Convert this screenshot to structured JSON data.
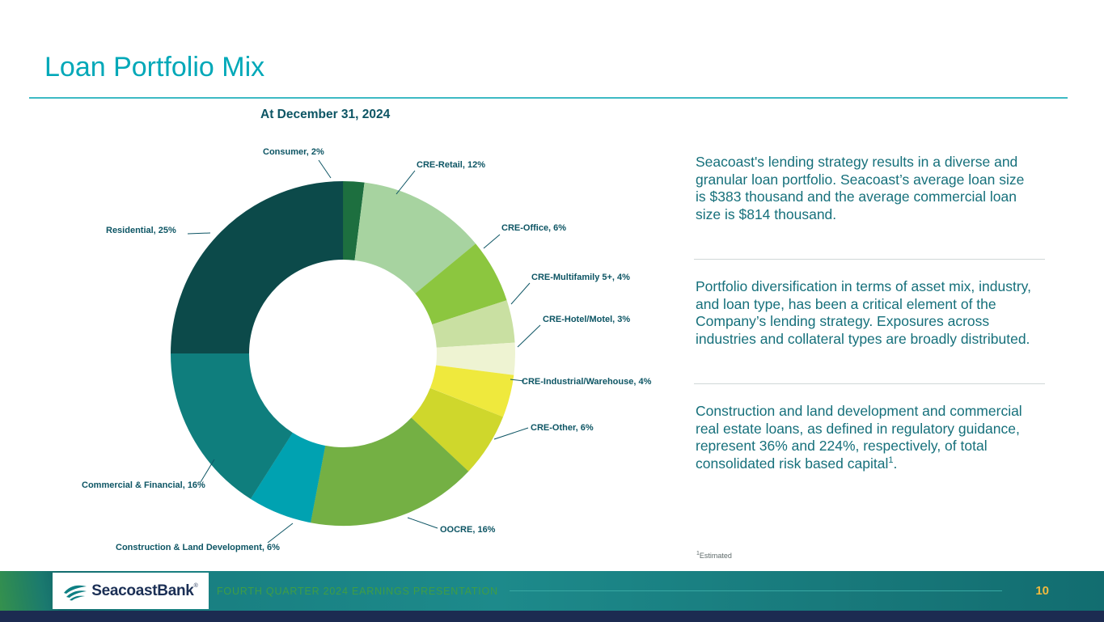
{
  "slide": {
    "title": "Loan Portfolio Mix",
    "insights": [
      {
        "text": "Seacoast's lending strategy results in a diverse and granular loan portfolio. Seacoast’s average loan size is $383 thousand and the average commercial loan size is $814 thousand."
      },
      {
        "text": "Portfolio diversification in terms of asset mix, industry, and loan type, has been a critical element of the Company’s lending strategy. Exposures across industries and collateral types are broadly distributed."
      },
      {
        "text": "Construction and land development and commercial real estate loans, as defined in regulatory guidance, represent 36% and 224%, respectively, of total consolidated risk based capital",
        "sup": "1",
        "suffix": "."
      }
    ],
    "footnote": {
      "sup": "1",
      "text": "Estimated"
    }
  },
  "chart_data": {
    "type": "pie",
    "donut": true,
    "title": "At December 31, 2024",
    "unit": "%",
    "legend": "none",
    "labels_position": "outside",
    "segments": [
      {
        "name": "Consumer",
        "value": 2,
        "label": "Consumer, 2%",
        "color": "#1d6f3f"
      },
      {
        "name": "CRE-Retail",
        "value": 12,
        "label": "CRE-Retail, 12%",
        "color": "#a7d3a0"
      },
      {
        "name": "CRE-Office",
        "value": 6,
        "label": "CRE-Office, 6%",
        "color": "#8cc63f"
      },
      {
        "name": "CRE-Multifamily 5+",
        "value": 4,
        "label": "CRE-Multifamily 5+, 4%",
        "color": "#c9e0a2"
      },
      {
        "name": "CRE-Hotel/Motel",
        "value": 3,
        "label": "CRE-Hotel/Motel, 3%",
        "color": "#eef3d2"
      },
      {
        "name": "CRE-Industrial/Warehouse",
        "value": 4,
        "label": "CRE-Industrial/Warehouse, 4%",
        "color": "#efe93d"
      },
      {
        "name": "CRE-Other",
        "value": 6,
        "label": "CRE-Other, 6%",
        "color": "#cfd72c"
      },
      {
        "name": "OOCRE",
        "value": 16,
        "label": "OOCRE, 16%",
        "color": "#74b044"
      },
      {
        "name": "Construction & Land Development",
        "value": 6,
        "label": "Construction & Land Development, 6%",
        "color": "#00a2b1"
      },
      {
        "name": "Commercial & Financial",
        "value": 16,
        "label": "Commercial & Financial, 16%",
        "color": "#0f7e7d"
      },
      {
        "name": "Residential",
        "value": 25,
        "label": "Residential, 25%",
        "color": "#0c4a4a"
      }
    ]
  },
  "footer": {
    "logo_text": "SeacoastBank",
    "logo_reg": "®",
    "presentation_label": "FOURTH QUARTER 2024 EARNINGS PRESENTATION",
    "page_number": "10"
  },
  "colors": {
    "title_accent": "#00a8b8",
    "body_text": "#16707b",
    "chart_label_text": "#0d5564",
    "footer_band": "#177779",
    "footer_label": "#3f9d45",
    "page_number": "#f1ba3e",
    "bottom_strip": "#1c2b51"
  }
}
